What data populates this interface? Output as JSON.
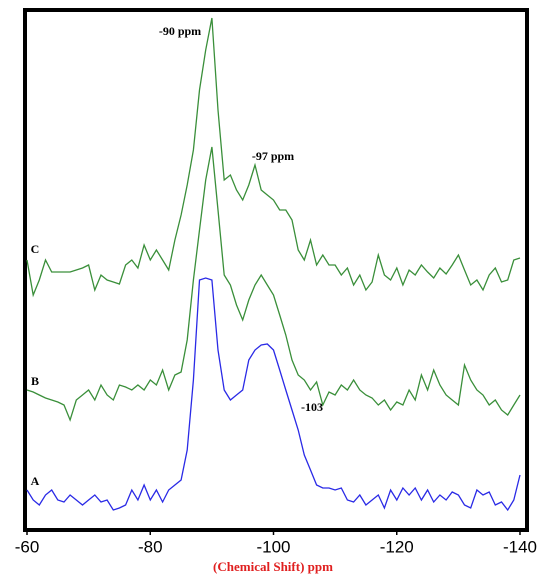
{
  "chart_data": {
    "type": "line",
    "xlabel": "(Chemical Shift) ppm",
    "xlim": [
      -60,
      -140
    ],
    "xticks": [
      -60,
      -80,
      -100,
      -120,
      -140
    ],
    "ylim": [
      0,
      520
    ],
    "annotations": [
      "-90 ppm",
      "-97 ppm",
      "-103"
    ],
    "x": [
      -60,
      -61,
      -62,
      -63,
      -64,
      -65,
      -66,
      -67,
      -68,
      -69,
      -70,
      -71,
      -72,
      -73,
      -74,
      -75,
      -76,
      -77,
      -78,
      -79,
      -80,
      -81,
      -82,
      -83,
      -84,
      -85,
      -86,
      -87,
      -88,
      -89,
      -90,
      -91,
      -92,
      -93,
      -94,
      -95,
      -96,
      -97,
      -98,
      -99,
      -100,
      -101,
      -102,
      -103,
      -104,
      -105,
      -106,
      -107,
      -108,
      -109,
      -110,
      -111,
      -112,
      -113,
      -114,
      -115,
      -116,
      -117,
      -118,
      -119,
      -120,
      -121,
      -122,
      -123,
      -124,
      -125,
      -126,
      -127,
      -128,
      -129,
      -130,
      -131,
      -132,
      -133,
      -134,
      -135,
      -136,
      -137,
      -138,
      -139,
      -140
    ],
    "series": [
      {
        "name": "A",
        "color": "#2a2ae6",
        "values": [
          40,
          30,
          25,
          35,
          40,
          30,
          28,
          35,
          30,
          25,
          30,
          35,
          28,
          30,
          20,
          22,
          25,
          40,
          30,
          45,
          30,
          40,
          28,
          40,
          45,
          50,
          80,
          150,
          250,
          252,
          250,
          180,
          140,
          130,
          135,
          140,
          170,
          180,
          185,
          186,
          180,
          160,
          140,
          120,
          100,
          75,
          60,
          45,
          42,
          42,
          40,
          42,
          30,
          28,
          35,
          25,
          30,
          35,
          22,
          40,
          30,
          42,
          35,
          42,
          30,
          40,
          28,
          35,
          30,
          38,
          35,
          25,
          22,
          40,
          35,
          38,
          25,
          28,
          20,
          30,
          55
        ]
      },
      {
        "name": "B",
        "color": "#3a8f3a",
        "values": [
          140,
          138,
          135,
          132,
          130,
          128,
          125,
          110,
          130,
          135,
          140,
          130,
          145,
          135,
          130,
          145,
          143,
          140,
          145,
          140,
          150,
          145,
          160,
          140,
          155,
          158,
          190,
          250,
          300,
          350,
          383,
          320,
          255,
          245,
          225,
          210,
          230,
          245,
          255,
          245,
          235,
          215,
          195,
          170,
          155,
          150,
          140,
          148,
          125,
          138,
          135,
          145,
          140,
          150,
          140,
          135,
          132,
          125,
          130,
          120,
          128,
          125,
          140,
          130,
          155,
          140,
          160,
          145,
          135,
          130,
          125,
          165,
          150,
          140,
          135,
          125,
          130,
          120,
          115,
          125,
          135
        ]
      },
      {
        "name": "C",
        "color": "#3a8f3a",
        "values": [
          270,
          235,
          250,
          270,
          258,
          258,
          258,
          258,
          260,
          262,
          265,
          240,
          255,
          250,
          248,
          246,
          265,
          270,
          262,
          285,
          270,
          280,
          270,
          260,
          290,
          315,
          345,
          380,
          440,
          480,
          512,
          420,
          350,
          355,
          340,
          330,
          345,
          365,
          340,
          335,
          330,
          320,
          320,
          310,
          280,
          270,
          290,
          265,
          275,
          265,
          265,
          255,
          262,
          245,
          255,
          240,
          248,
          275,
          255,
          250,
          262,
          245,
          260,
          255,
          265,
          258,
          252,
          262,
          256,
          265,
          275,
          260,
          245,
          250,
          240,
          255,
          262,
          248,
          250,
          270,
          272
        ]
      }
    ]
  }
}
